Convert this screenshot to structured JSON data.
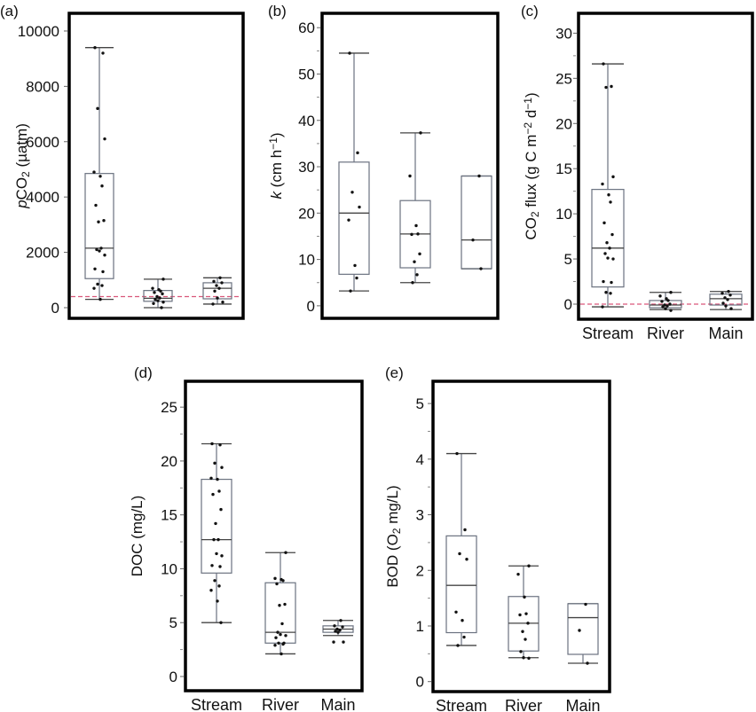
{
  "chart_data": [
    {
      "type": "box",
      "panel_label": "(a)",
      "ylabel_parts": [
        {
          "text": "p",
          "style": "italic"
        },
        {
          "text": "CO",
          "style": "normal"
        },
        {
          "text": "2",
          "style": "sub"
        },
        {
          "text": " (µatm)",
          "style": "normal"
        }
      ],
      "ylim": [
        -385,
        10640
      ],
      "yticks": [
        0,
        2000,
        4000,
        6000,
        8000,
        10000
      ],
      "minor_step": null,
      "reference_line": 400,
      "show_categories": false,
      "categories": [
        "Stream",
        "River",
        "Main"
      ],
      "boxes": [
        {
          "name": "Stream",
          "whisker_low": 300,
          "q1": 1050,
          "median": 2150,
          "q3": 4850,
          "whisker_high": 9400,
          "points": [
            9400,
            9200,
            7200,
            6100,
            4900,
            4750,
            4400,
            3700,
            3150,
            3100,
            2150,
            2100,
            2050,
            1900,
            1400,
            1300,
            850,
            800,
            700,
            300
          ]
        },
        {
          "name": "River",
          "whisker_low": 0,
          "q1": 230,
          "median": 340,
          "q3": 620,
          "whisker_high": 1030,
          "points": [
            1030,
            700,
            650,
            600,
            550,
            500,
            400,
            350,
            300,
            250,
            200,
            150,
            0
          ]
        },
        {
          "name": "Main",
          "whisker_low": 130,
          "q1": 320,
          "median": 700,
          "q3": 900,
          "whisker_high": 1080,
          "points": [
            1080,
            950,
            900,
            800,
            700,
            600,
            350,
            200,
            130
          ]
        }
      ]
    },
    {
      "type": "box",
      "panel_label": "(b)",
      "ylabel_parts": [
        {
          "text": "k",
          "style": "italic"
        },
        {
          "text": " (cm h",
          "style": "normal"
        },
        {
          "text": "−1",
          "style": "sup"
        },
        {
          "text": ")",
          "style": "normal"
        }
      ],
      "ylim": [
        -2.7,
        63.1
      ],
      "yticks": [
        0,
        10,
        20,
        30,
        40,
        50,
        60
      ],
      "minor_step": 5,
      "reference_line": null,
      "show_categories": false,
      "categories": [
        "Stream",
        "River",
        "Main"
      ],
      "boxes": [
        {
          "name": "Stream",
          "whisker_low": 3.2,
          "q1": 6.8,
          "median": 20,
          "q3": 31,
          "whisker_high": 54.5,
          "points": [
            54.5,
            33,
            24.5,
            21.3,
            18.5,
            8.7,
            6,
            3.2
          ]
        },
        {
          "name": "River",
          "whisker_low": 5,
          "q1": 8.2,
          "median": 15.5,
          "q3": 22.7,
          "whisker_high": 37.3,
          "points": [
            37.3,
            28,
            17.3,
            15.5,
            15.4,
            11.2,
            9.5,
            6.7,
            5
          ]
        },
        {
          "name": "Main",
          "whisker_low": 8,
          "q1": 8,
          "median": 14.2,
          "q3": 28,
          "whisker_high": 28,
          "points": [
            28,
            14.2,
            8
          ]
        }
      ]
    },
    {
      "type": "box",
      "panel_label": "(c)",
      "ylabel_parts": [
        {
          "text": "CO",
          "style": "normal"
        },
        {
          "text": "2",
          "style": "sub"
        },
        {
          "text": " flux (g C m",
          "style": "normal"
        },
        {
          "text": "−2",
          "style": "sup"
        },
        {
          "text": " d",
          "style": "normal"
        },
        {
          "text": "−1",
          "style": "sup"
        },
        {
          "text": ")",
          "style": "normal"
        }
      ],
      "ylim": [
        -1.67,
        32.2
      ],
      "yticks": [
        0,
        5,
        10,
        15,
        20,
        25,
        30
      ],
      "minor_step": 2.5,
      "reference_line": 0,
      "show_categories": true,
      "categories": [
        "Stream",
        "River",
        "Main"
      ],
      "boxes": [
        {
          "name": "Stream",
          "whisker_low": -0.3,
          "q1": 1.9,
          "median": 6.2,
          "q3": 12.7,
          "whisker_high": 26.6,
          "points": [
            26.6,
            24.1,
            24,
            14.1,
            13.3,
            12.1,
            11.3,
            9,
            7.7,
            6.8,
            6.2,
            5.6,
            5.1,
            5,
            2.5,
            2.4,
            1.3,
            1.2,
            -0.3
          ]
        },
        {
          "name": "River",
          "whisker_low": -0.6,
          "q1": -0.4,
          "median": -0.1,
          "q3": 0.4,
          "whisker_high": 1.3,
          "points": [
            1.3,
            0.9,
            0.6,
            0.4,
            0.3,
            0,
            -0.1,
            -0.2,
            -0.3,
            -0.5,
            -0.7
          ]
        },
        {
          "name": "Main",
          "whisker_low": -0.6,
          "q1": -0.1,
          "median": 0.6,
          "q3": 1.1,
          "whisker_high": 1.4,
          "points": [
            1.4,
            1.2,
            1.0,
            0.7,
            0.5,
            0.1,
            -0.2,
            -0.5
          ]
        }
      ]
    },
    {
      "type": "box",
      "panel_label": "(d)",
      "ylabel_parts": [
        {
          "text": "DOC (mg/L)",
          "style": "normal"
        }
      ],
      "ylim": [
        -1.32,
        27.4
      ],
      "yticks": [
        0,
        5,
        10,
        15,
        20,
        25
      ],
      "minor_step": 2.5,
      "reference_line": null,
      "show_categories": true,
      "categories": [
        "Stream",
        "River",
        "Main"
      ],
      "boxes": [
        {
          "name": "Stream",
          "whisker_low": 5,
          "q1": 9.6,
          "median": 12.7,
          "q3": 18.3,
          "whisker_high": 21.6,
          "points": [
            21.6,
            21.5,
            19.8,
            19.4,
            18.4,
            18.3,
            17.2,
            16.9,
            15.5,
            14.2,
            12.7,
            12.7,
            11.4,
            11.2,
            10.3,
            10.2,
            8.9,
            8.4,
            8,
            7,
            5
          ]
        },
        {
          "name": "River",
          "whisker_low": 2.1,
          "q1": 3.1,
          "median": 4.1,
          "q3": 8.7,
          "whisker_high": 11.5,
          "points": [
            11.5,
            9.1,
            9,
            8.9,
            8.6,
            6.7,
            6.6,
            4.9,
            4.1,
            3.9,
            3.8,
            3.6,
            3.1,
            3.1,
            3.0,
            2.9,
            2.1
          ]
        },
        {
          "name": "Main",
          "whisker_low": 3.8,
          "q1": 4.1,
          "median": 4.4,
          "q3": 4.7,
          "whisker_high": 5.2,
          "points": [
            5.2,
            4.7,
            4.6,
            4.4,
            4.3,
            4.2,
            4.1,
            3.2,
            3.2
          ]
        }
      ]
    },
    {
      "type": "box",
      "panel_label": "(e)",
      "ylabel_parts": [
        {
          "text": "BOD (O",
          "style": "normal"
        },
        {
          "text": "2",
          "style": "sub"
        },
        {
          "text": " mg/L)",
          "style": "normal"
        }
      ],
      "ylim": [
        -0.18,
        5.4
      ],
      "yticks": [
        0,
        1,
        2,
        3,
        4,
        5
      ],
      "minor_step": 0.5,
      "reference_line": null,
      "show_categories": true,
      "categories": [
        "Stream",
        "River",
        "Main"
      ],
      "boxes": [
        {
          "name": "Stream",
          "whisker_low": 0.65,
          "q1": 0.88,
          "median": 1.73,
          "q3": 2.62,
          "whisker_high": 4.1,
          "points": [
            4.1,
            2.73,
            2.3,
            2.2,
            1.25,
            1.1,
            0.8,
            0.65
          ]
        },
        {
          "name": "River",
          "whisker_low": 0.43,
          "q1": 0.55,
          "median": 1.05,
          "q3": 1.53,
          "whisker_high": 2.08,
          "points": [
            2.08,
            1.93,
            1.52,
            1.22,
            1.2,
            1.05,
            0.9,
            0.76,
            0.54,
            0.43,
            0.42
          ]
        },
        {
          "name": "Main",
          "whisker_low": 0.33,
          "q1": 0.49,
          "median": 1.15,
          "q3": 1.4,
          "whisker_high": 1.4,
          "points": [
            1.39,
            0.92,
            0.33
          ]
        }
      ]
    }
  ],
  "colors": {
    "box": "#6b7280",
    "frame": "#000000",
    "point": "#111111",
    "reference": "#d9577a"
  }
}
